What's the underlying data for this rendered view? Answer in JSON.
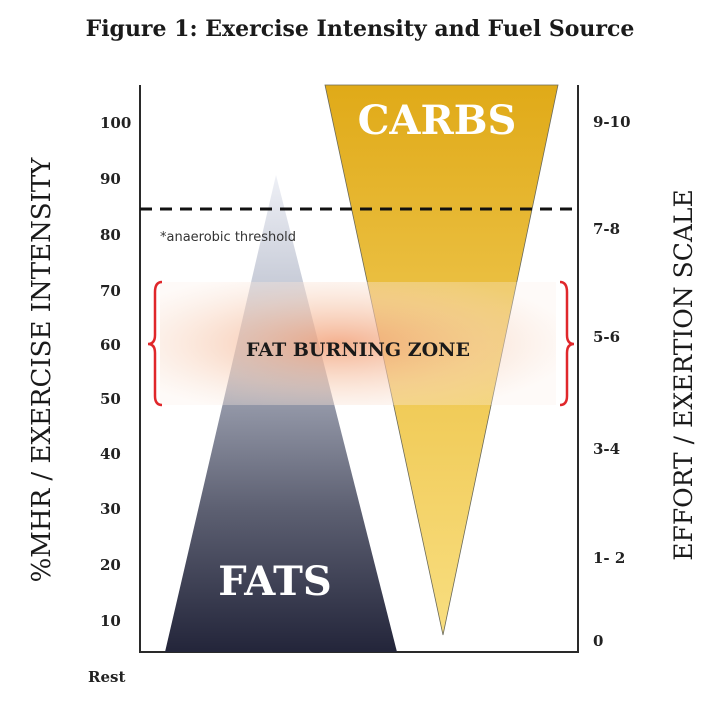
{
  "title": "Figure 1: Exercise Intensity and Fuel Source",
  "left_axis": {
    "label": "%MHR / EXERCISE INTENSITY",
    "ticks": [
      "100",
      "90",
      "80",
      "70",
      "60",
      "50",
      "40",
      "30",
      "20",
      "10",
      "Rest"
    ]
  },
  "right_axis": {
    "label": "EFFORT / EXERTION SCALE",
    "ticks": [
      "9-10",
      "7-8",
      "5-6",
      "3-4",
      "1- 2",
      "0"
    ]
  },
  "carbs_label": "CARBS",
  "fats_label": "FATS",
  "threshold_label": "*anaerobic threshold",
  "zone_label": "FAT BURNING ZONE",
  "colors": {
    "carbs": "#e3b01e",
    "fats": "#2b2d40",
    "zone_brace": "#e0272b",
    "zone_band": "#f4b58f"
  }
}
